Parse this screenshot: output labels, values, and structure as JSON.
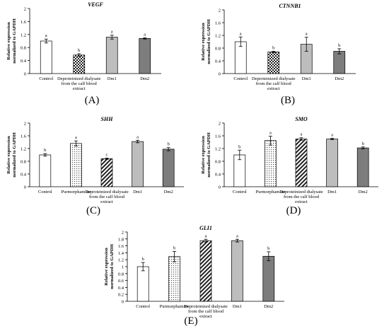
{
  "chart_data": [
    {
      "type": "bar",
      "panel_label": "(A)",
      "title": "VEGF",
      "ylabel": "Relative expression normalized to GAPDH",
      "ylim": [
        0,
        2
      ],
      "yticks": [
        "0",
        "0.4",
        "0.8",
        "1.2",
        "1.6",
        "2"
      ],
      "categories": [
        "Control",
        "Deproteinized dialysate from the calf blood extract",
        "Dm1",
        "Dm2"
      ],
      "values": [
        1.0,
        0.57,
        1.12,
        1.08
      ],
      "errors": [
        0.06,
        0.04,
        0.06,
        0.02
      ],
      "letters": [
        "a",
        "b",
        "a",
        "a"
      ],
      "fills": [
        "white",
        "checker",
        "lightgray",
        "darkgray"
      ],
      "grid": false
    },
    {
      "type": "bar",
      "panel_label": "(B)",
      "title": "CTNNB1",
      "ylabel": "Relative expression normalized to GAPDH",
      "ylim": [
        0,
        2
      ],
      "yticks": [
        "0",
        "0.4",
        "0.8",
        "1.2",
        "1.6",
        "2"
      ],
      "categories": [
        "Control",
        "Deproteinized dialysate from the calf blood extract",
        "Dm1",
        "Dm2"
      ],
      "values": [
        1.0,
        0.68,
        0.92,
        0.7
      ],
      "errors": [
        0.15,
        0.02,
        0.22,
        0.08
      ],
      "letters": [
        "a",
        "b",
        "a",
        "b"
      ],
      "fills": [
        "white",
        "checker",
        "lightgray",
        "darkgray"
      ],
      "grid": false
    },
    {
      "type": "bar",
      "panel_label": "(C)",
      "title": "SHH",
      "ylabel": "Relative expression normalized to GAPDH",
      "ylim": [
        0,
        2
      ],
      "yticks": [
        "0",
        "0.4",
        "0.8",
        "1.2",
        "1.6",
        "2"
      ],
      "categories": [
        "Control",
        "Purmorphamine",
        "Deproteinized dialysate from the calf blood extract",
        "Dm1",
        "Dm2"
      ],
      "values": [
        1.0,
        1.36,
        0.88,
        1.42,
        1.18
      ],
      "errors": [
        0.04,
        0.08,
        0.02,
        0.04,
        0.05
      ],
      "letters": [
        "b",
        "a",
        "c",
        "a",
        "b"
      ],
      "fills": [
        "white",
        "dotted",
        "hatch",
        "lightgray",
        "darkgray"
      ],
      "grid": false
    },
    {
      "type": "bar",
      "panel_label": "(D)",
      "title": "SMO",
      "ylabel": "Relative expression normalized to GAPDH",
      "ylim": [
        0,
        2
      ],
      "yticks": [
        "0",
        "0.4",
        "0.8",
        "1.2",
        "1.6",
        "2"
      ],
      "categories": [
        "Control",
        "Purmorphamine",
        "Deproteinized dialysate from the calf blood extract",
        "Dm1",
        "Dm2"
      ],
      "values": [
        1.0,
        1.45,
        1.5,
        1.5,
        1.22
      ],
      "errors": [
        0.15,
        0.14,
        0.04,
        0.02,
        0.03
      ],
      "letters": [
        "b",
        "a",
        "a",
        "a",
        "b"
      ],
      "fills": [
        "white",
        "dotted",
        "hatch",
        "lightgray",
        "darkgray"
      ],
      "grid": false
    },
    {
      "type": "bar",
      "panel_label": "(E)",
      "title": "GLI1",
      "ylabel": "Relative expression normalized to GAPDH",
      "ylim": [
        0,
        2
      ],
      "yticks": [
        "0",
        "0.2",
        "0.4",
        "0.6",
        "0.8",
        "1",
        "1.2",
        "1.4",
        "1.6",
        "1.8",
        "2"
      ],
      "categories": [
        "Control",
        "Purmorphamine",
        "Deproteinized dialysate from the calf blood extract",
        "Dm1",
        "Dm2"
      ],
      "values": [
        1.0,
        1.29,
        1.75,
        1.75,
        1.3
      ],
      "errors": [
        0.12,
        0.15,
        0.04,
        0.04,
        0.13
      ],
      "letters": [
        "b",
        "b",
        "a",
        "a",
        "b"
      ],
      "fills": [
        "white",
        "dotted",
        "hatch",
        "lightgray",
        "darkgray"
      ],
      "grid": false
    }
  ]
}
